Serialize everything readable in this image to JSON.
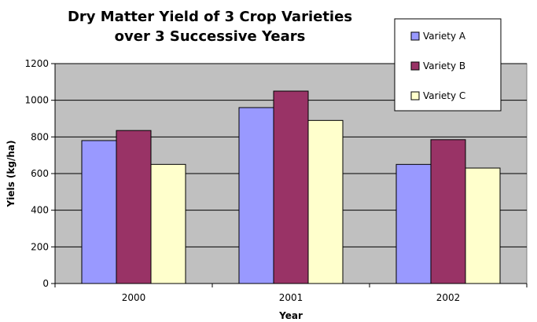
{
  "chart_data": {
    "type": "bar",
    "title_lines": [
      "Dry Matter Yield of 3 Crop Varieties",
      "over 3 Successive Years"
    ],
    "xlabel": "Year",
    "ylabel": "Yiels (kg/ha)",
    "categories": [
      "2000",
      "2001",
      "2002"
    ],
    "series": [
      {
        "name": "Variety A",
        "color": "#9999ff",
        "values": [
          780,
          960,
          650
        ]
      },
      {
        "name": "Variety B",
        "color": "#993366",
        "values": [
          835,
          1050,
          785
        ]
      },
      {
        "name": "Variety C",
        "color": "#ffffcc",
        "values": [
          650,
          890,
          630
        ]
      }
    ],
    "ylim": [
      0,
      1200
    ],
    "yticks": [
      "0",
      "200",
      "400",
      "600",
      "800",
      "1000",
      "1200"
    ],
    "grid": true,
    "plot_background": "#c0c0c0",
    "legend_position": "top-right"
  }
}
